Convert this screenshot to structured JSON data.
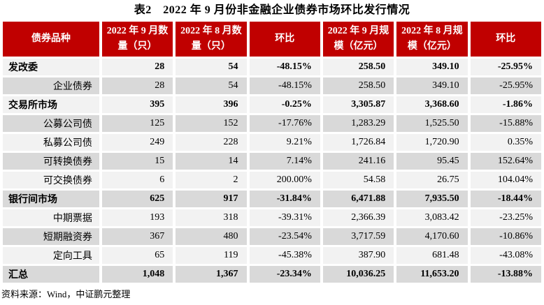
{
  "title": "表2　2022 年 9 月份非金融企业债券市场环比发行情况",
  "colors": {
    "header_bg": "#C00000",
    "header_text": "#FFFFFF",
    "row_light": "#F2F2F2",
    "row_dark": "#D9D9D9"
  },
  "table": {
    "columns": [
      "债券品种",
      "2022 年 9 月数量（只）",
      "2022 年 8 月数量（只）",
      "环比",
      "2022 年 9 月规模（亿元）",
      "2022 年 8 月规模（亿元）",
      "环比"
    ],
    "rows": [
      {
        "label": "发改委",
        "level": "group",
        "values": [
          "28",
          "54",
          "-48.15%",
          "258.50",
          "349.10",
          "-25.95%"
        ]
      },
      {
        "label": "企业债券",
        "level": "sub",
        "values": [
          "28",
          "54",
          "-48.15%",
          "258.50",
          "349.10",
          "-25.95%"
        ]
      },
      {
        "label": "交易所市场",
        "level": "group",
        "values": [
          "395",
          "396",
          "-0.25%",
          "3,305.87",
          "3,368.60",
          "-1.86%"
        ]
      },
      {
        "label": "公募公司债",
        "level": "sub",
        "values": [
          "125",
          "152",
          "-17.76%",
          "1,283.29",
          "1,525.50",
          "-15.88%"
        ]
      },
      {
        "label": "私募公司债",
        "level": "sub",
        "values": [
          "249",
          "228",
          "9.21%",
          "1,726.84",
          "1,720.90",
          "0.35%"
        ]
      },
      {
        "label": "可转换债券",
        "level": "sub",
        "values": [
          "15",
          "14",
          "7.14%",
          "241.16",
          "95.45",
          "152.64%"
        ]
      },
      {
        "label": "可交换债券",
        "level": "sub",
        "values": [
          "6",
          "2",
          "200.00%",
          "54.58",
          "26.75",
          "104.04%"
        ]
      },
      {
        "label": "银行间市场",
        "level": "group",
        "values": [
          "625",
          "917",
          "-31.84%",
          "6,471.88",
          "7,935.50",
          "-18.44%"
        ]
      },
      {
        "label": "中期票据",
        "level": "sub",
        "values": [
          "193",
          "318",
          "-39.31%",
          "2,366.39",
          "3,083.42",
          "-23.25%"
        ]
      },
      {
        "label": "短期融资券",
        "level": "sub",
        "values": [
          "367",
          "480",
          "-23.54%",
          "3,717.59",
          "4,170.60",
          "-10.86%"
        ]
      },
      {
        "label": "定向工具",
        "level": "sub",
        "values": [
          "65",
          "119",
          "-45.38%",
          "387.90",
          "681.48",
          "-43.08%"
        ]
      },
      {
        "label": "汇总",
        "level": "total",
        "values": [
          "1,048",
          "1,367",
          "-23.34%",
          "10,036.25",
          "11,653.20",
          "-13.88%"
        ]
      }
    ]
  },
  "footer": {
    "source": "资料来源：Wind，中证鹏元整理"
  }
}
